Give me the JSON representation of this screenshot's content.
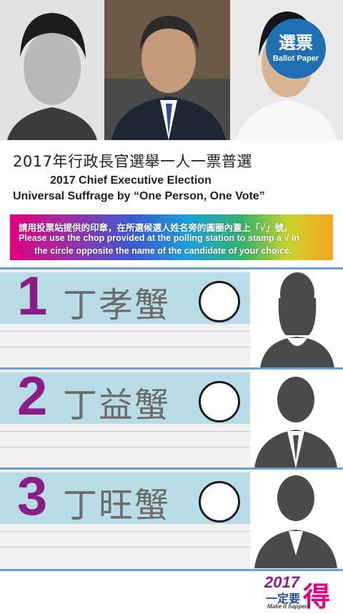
{
  "header": {
    "title_zh": "2017年行政長官選舉一人一票普選",
    "title_en_line1": "2017 Chief Executive Election",
    "title_en_line2": "Universal Suffrage by “One Person, One Vote”",
    "badge_zh": "選票",
    "badge_en": "Ballot Paper",
    "badge_color": "#1f6fb5"
  },
  "instructions": {
    "zh": "請用投票站提供的印章，在所選候選人姓名旁的圓圈內蓋上「√」號。",
    "en_line1": "Please use the chop provided at the polling station to stamp a √ in",
    "en_line2": "the circle opposite the name of the candidate of your choice."
  },
  "candidates": [
    {
      "number": "1",
      "name": "丁孝蟹"
    },
    {
      "number": "2",
      "name": "丁益蟹"
    },
    {
      "number": "3",
      "name": "丁旺蟹"
    }
  ],
  "logo": {
    "year": "2017",
    "zh": "一定要",
    "big": "得",
    "en": "Make it happen!"
  },
  "colors": {
    "number": "#8b1d86",
    "band": "#b9dde6",
    "divider": "#6a9ed6"
  }
}
